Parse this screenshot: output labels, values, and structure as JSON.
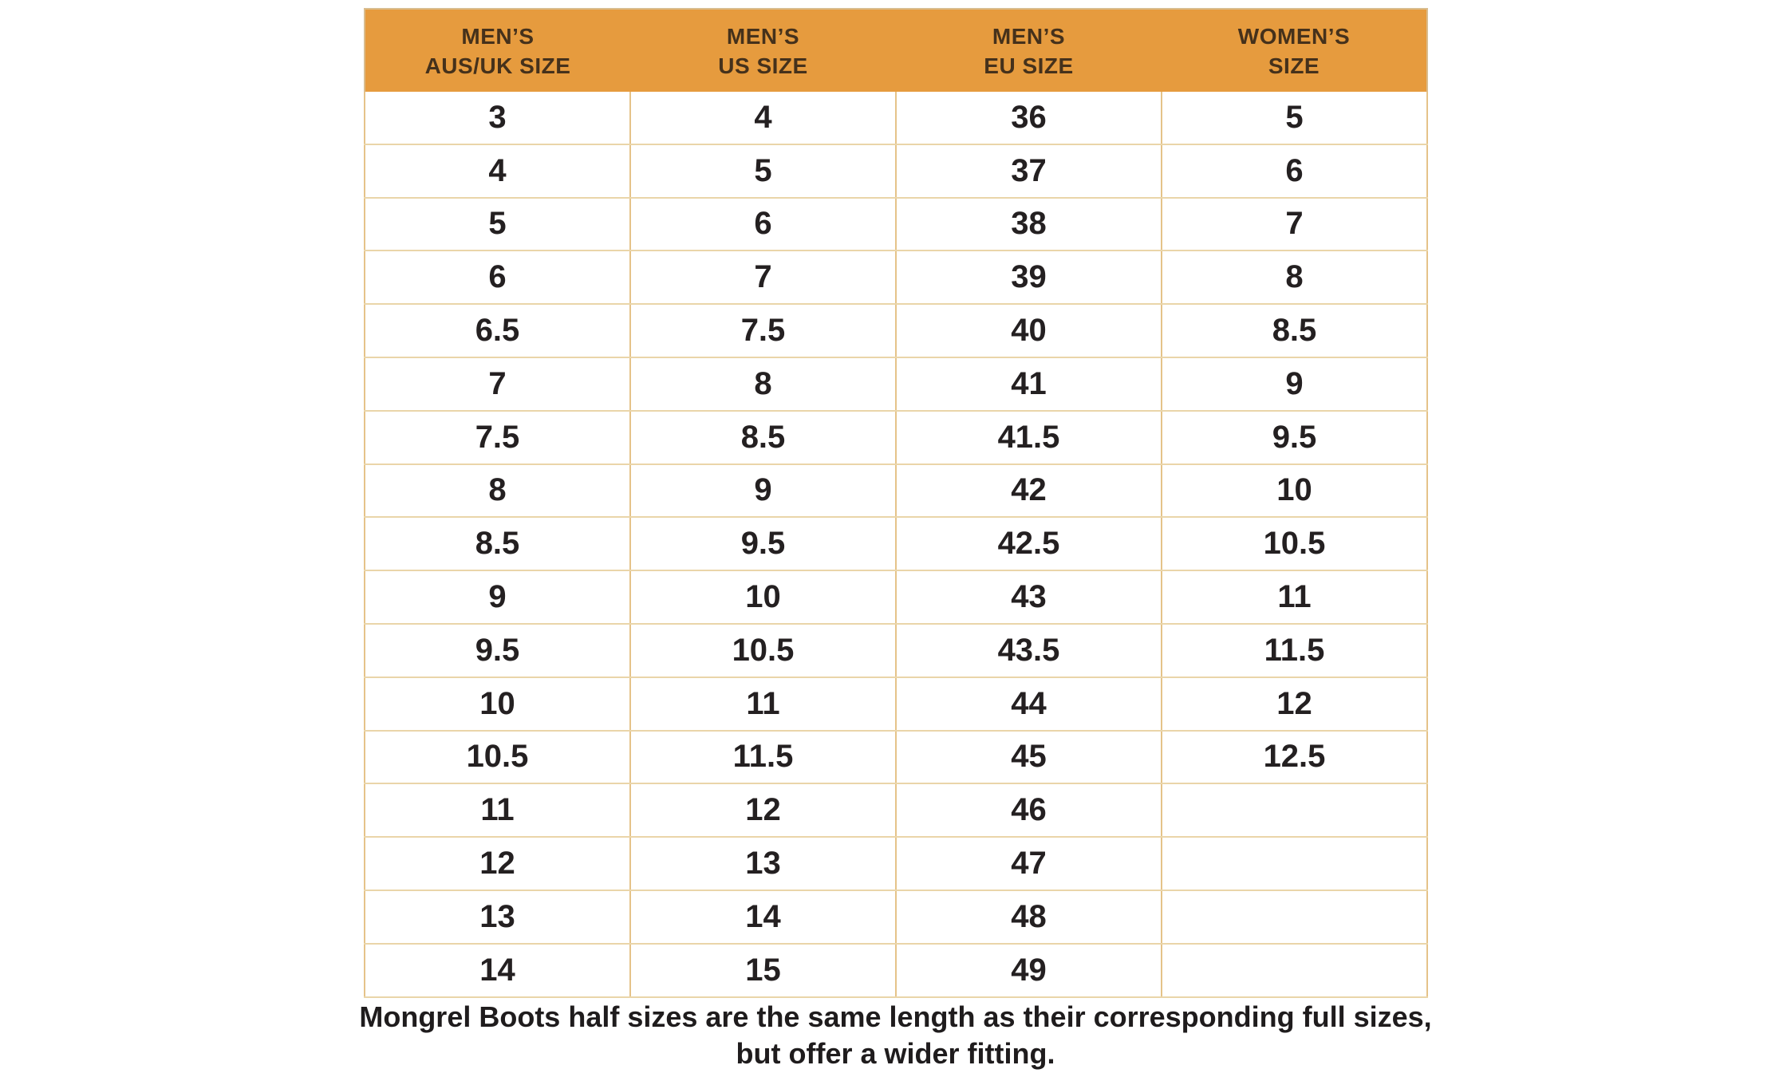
{
  "colors": {
    "page_background": "#FFFFFF",
    "header_background": "#E69B3E",
    "header_text": "#45311B",
    "body_text": "#242021",
    "grid_line_vertical": "#E5C389",
    "grid_line_horizontal": "#EAD5A9",
    "outer_border": "#D9BD8F"
  },
  "table": {
    "headers": [
      "MEN’S\nAUS/UK SIZE",
      "MEN’S\nUS SIZE",
      "MEN’S\nEU SIZE",
      "WOMEN’S\nSIZE"
    ],
    "rows": [
      [
        "3",
        "4",
        "36",
        "5"
      ],
      [
        "4",
        "5",
        "37",
        "6"
      ],
      [
        "5",
        "6",
        "38",
        "7"
      ],
      [
        "6",
        "7",
        "39",
        "8"
      ],
      [
        "6.5",
        "7.5",
        "40",
        "8.5"
      ],
      [
        "7",
        "8",
        "41",
        "9"
      ],
      [
        "7.5",
        "8.5",
        "41.5",
        "9.5"
      ],
      [
        "8",
        "9",
        "42",
        "10"
      ],
      [
        "8.5",
        "9.5",
        "42.5",
        "10.5"
      ],
      [
        "9",
        "10",
        "43",
        "11"
      ],
      [
        "9.5",
        "10.5",
        "43.5",
        "11.5"
      ],
      [
        "10",
        "11",
        "44",
        "12"
      ],
      [
        "10.5",
        "11.5",
        "45",
        "12.5"
      ],
      [
        "11",
        "12",
        "46",
        ""
      ],
      [
        "12",
        "13",
        "47",
        ""
      ],
      [
        "13",
        "14",
        "48",
        ""
      ],
      [
        "14",
        "15",
        "49",
        ""
      ]
    ]
  },
  "footer": {
    "note": "Mongrel Boots half sizes are the same length as their corresponding full sizes,\nbut offer a wider fitting."
  },
  "chart_data": {
    "type": "table",
    "title": "Mongrel Boots size conversion chart",
    "columns": [
      "MEN’S AUS/UK SIZE",
      "MEN’S US SIZE",
      "MEN’S EU SIZE",
      "WOMEN’S SIZE"
    ],
    "rows": [
      [
        3,
        4,
        36,
        5
      ],
      [
        4,
        5,
        37,
        6
      ],
      [
        5,
        6,
        38,
        7
      ],
      [
        6,
        7,
        39,
        8
      ],
      [
        6.5,
        7.5,
        40,
        8.5
      ],
      [
        7,
        8,
        41,
        9
      ],
      [
        7.5,
        8.5,
        41.5,
        9.5
      ],
      [
        8,
        9,
        42,
        10
      ],
      [
        8.5,
        9.5,
        42.5,
        10.5
      ],
      [
        9,
        10,
        43,
        11
      ],
      [
        9.5,
        10.5,
        43.5,
        11.5
      ],
      [
        10,
        11,
        44,
        12
      ],
      [
        10.5,
        11.5,
        45,
        12.5
      ],
      [
        11,
        12,
        46,
        null
      ],
      [
        12,
        13,
        47,
        null
      ],
      [
        13,
        14,
        48,
        null
      ],
      [
        14,
        15,
        49,
        null
      ]
    ],
    "note": "Mongrel Boots half sizes are the same length as their corresponding full sizes, but offer a wider fitting.",
    "layout_hints": {
      "header_style": "orange band, dark brown bold uppercase text, two lines per header",
      "grid": "on",
      "legend": "none"
    }
  }
}
